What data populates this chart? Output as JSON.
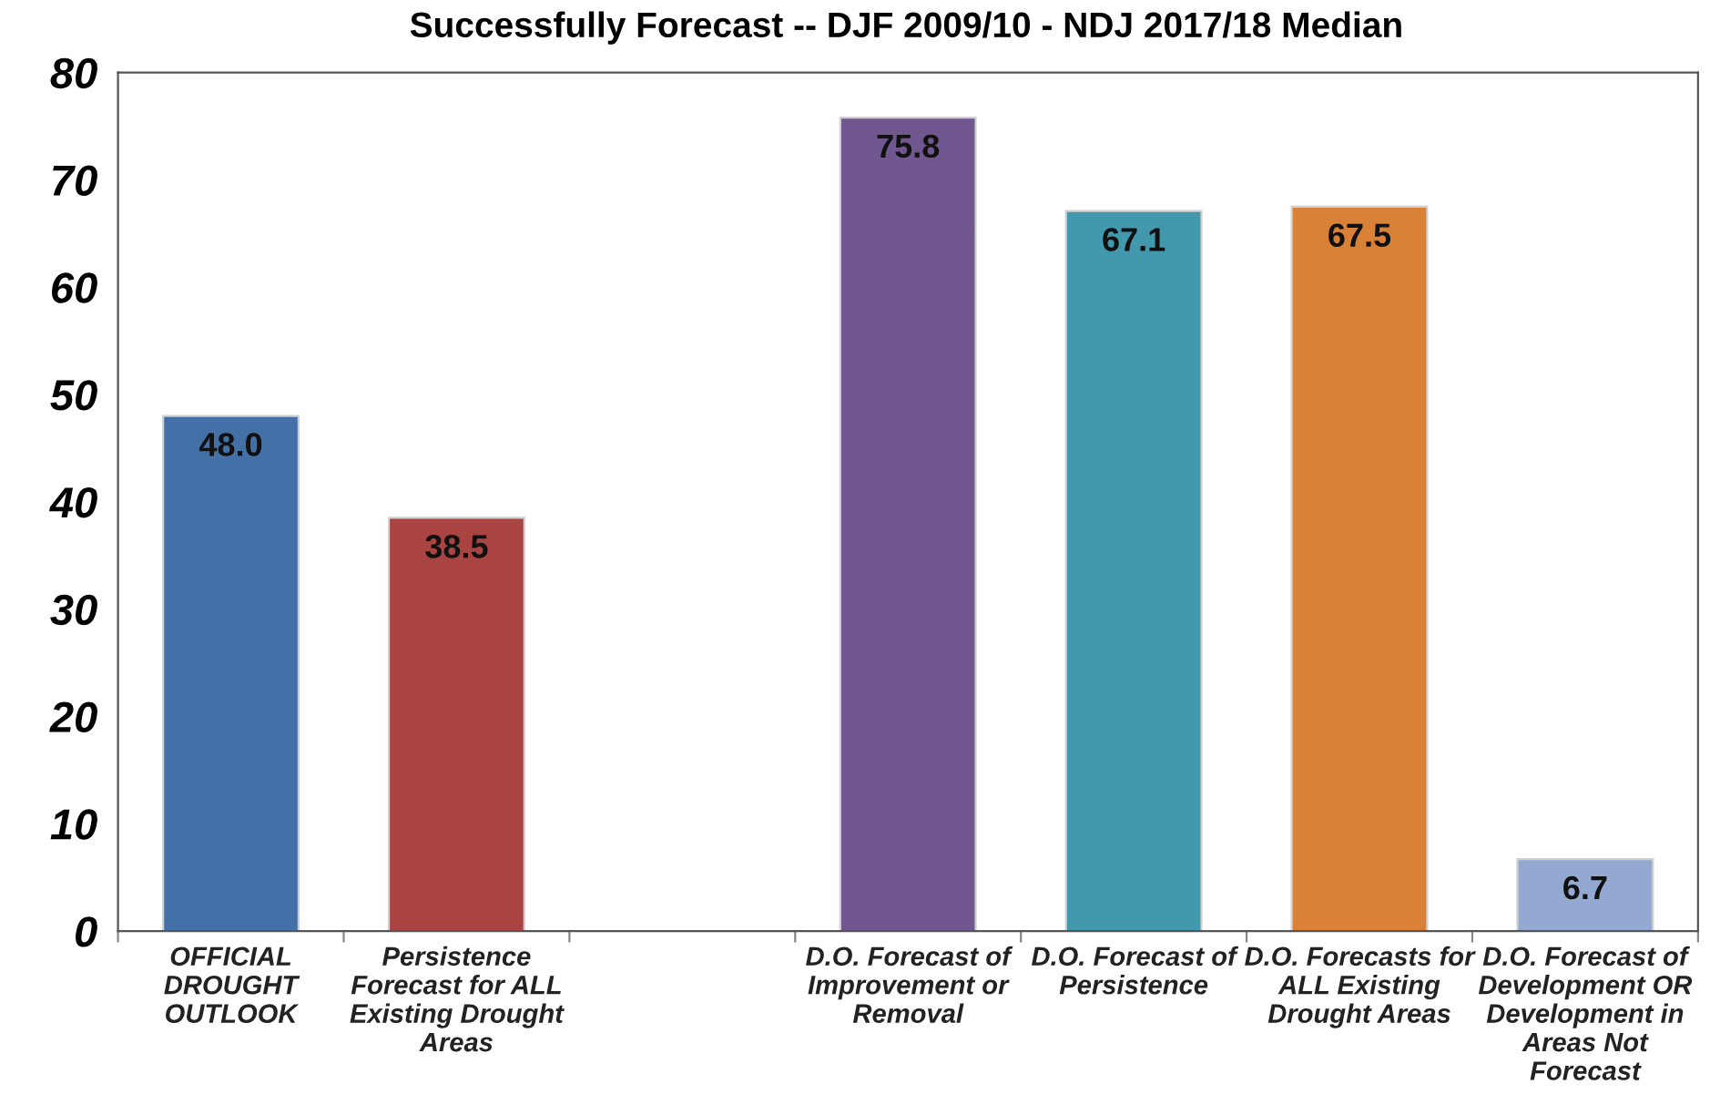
{
  "chart_data": {
    "type": "bar",
    "title": "Successfully Forecast -- DJF 2009/10 - NDJ 2017/18 Median",
    "categories": [
      "OFFICIAL\nDROUGHT\nOUTLOOK",
      "Persistence\nForecast for ALL\nExisting Drought\nAreas",
      null,
      "D.O. Forecast of\nImprovement or\nRemoval",
      "D.O. Forecast of\nPersistence",
      "D.O. Forecasts for\nALL Existing\nDrought Areas",
      "D.O. Forecast of\nDevelopment OR\nDevelopment in\nAreas Not\nForecast"
    ],
    "values": [
      48.0,
      38.5,
      null,
      75.8,
      67.1,
      67.5,
      6.7
    ],
    "colors": [
      "#4470a8",
      "#aa4442",
      "#888888",
      "#71578f",
      "#4299ae",
      "#da8138",
      "#93a9d2"
    ],
    "value_labels": [
      "48.0",
      "38.5",
      null,
      "75.8",
      "67.1",
      "67.5",
      "6.7"
    ],
    "ylim": [
      0,
      80
    ],
    "yticks": [
      0,
      10,
      20,
      30,
      40,
      50,
      60,
      70,
      80
    ],
    "grid": false,
    "legend": false
  }
}
